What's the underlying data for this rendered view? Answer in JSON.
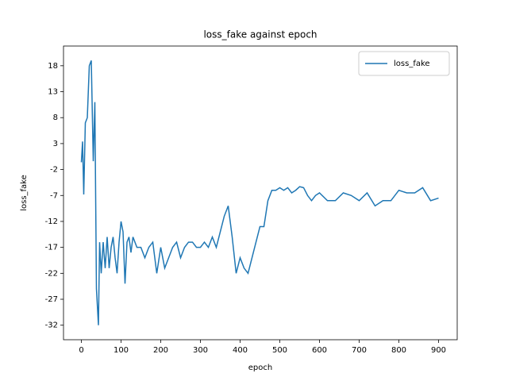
{
  "chart_data": {
    "type": "line",
    "title": "loss_fake against epoch",
    "x_label": "epoch",
    "y_label": "loss_fake",
    "x": [
      0,
      3,
      6,
      10,
      15,
      20,
      25,
      30,
      34,
      38,
      43,
      46,
      50,
      55,
      60,
      65,
      70,
      75,
      80,
      85,
      90,
      95,
      100,
      105,
      110,
      115,
      120,
      125,
      130,
      140,
      150,
      160,
      170,
      180,
      190,
      200,
      210,
      220,
      230,
      240,
      250,
      260,
      270,
      280,
      290,
      300,
      310,
      320,
      330,
      340,
      350,
      360,
      370,
      380,
      390,
      400,
      410,
      420,
      430,
      440,
      450,
      460,
      470,
      480,
      490,
      500,
      510,
      520,
      530,
      540,
      550,
      560,
      570,
      580,
      590,
      600,
      620,
      640,
      660,
      680,
      700,
      720,
      740,
      760,
      780,
      800,
      820,
      840,
      860,
      880,
      900
    ],
    "series": [
      {
        "name": "loss_fake",
        "color": "#1f77b4",
        "values": [
          -0.6,
          3.4,
          -6.8,
          7,
          8,
          18,
          19,
          -0.4,
          11,
          -25,
          -32,
          -16,
          -22,
          -16,
          -21,
          -15,
          -21,
          -17,
          -15,
          -19,
          -22,
          -16,
          -12,
          -14,
          -24,
          -16,
          -15,
          -18,
          -15,
          -17,
          -17,
          -19,
          -17,
          -16,
          -22,
          -17,
          -21,
          -19,
          -17,
          -16,
          -19,
          -17,
          -16,
          -16,
          -17,
          -17,
          -16,
          -17,
          -15,
          -17,
          -14,
          -11,
          -9,
          -15,
          -22,
          -19,
          -21,
          -22,
          -19,
          -16,
          -13,
          -13,
          -8,
          -6,
          -6,
          -5.5,
          -6,
          -5.5,
          -6.5,
          -6,
          -5.3,
          -5.5,
          -7,
          -8,
          -7,
          -6.5,
          -8,
          -8,
          -6.5,
          -7,
          -8,
          -6.5,
          -9,
          -8,
          -8,
          -6,
          -6.5,
          -6.5,
          -5.5,
          -8,
          -7.5
        ]
      }
    ],
    "xlim": [
      -45,
      947
    ],
    "ylim": [
      -34.8,
      21.8
    ],
    "xticks": [
      0,
      100,
      200,
      300,
      400,
      500,
      600,
      700,
      800,
      900
    ],
    "yticks": [
      18,
      13,
      8,
      3,
      -2,
      -7,
      -12,
      -17,
      -22,
      -27,
      -32
    ],
    "legend": "upper right"
  }
}
